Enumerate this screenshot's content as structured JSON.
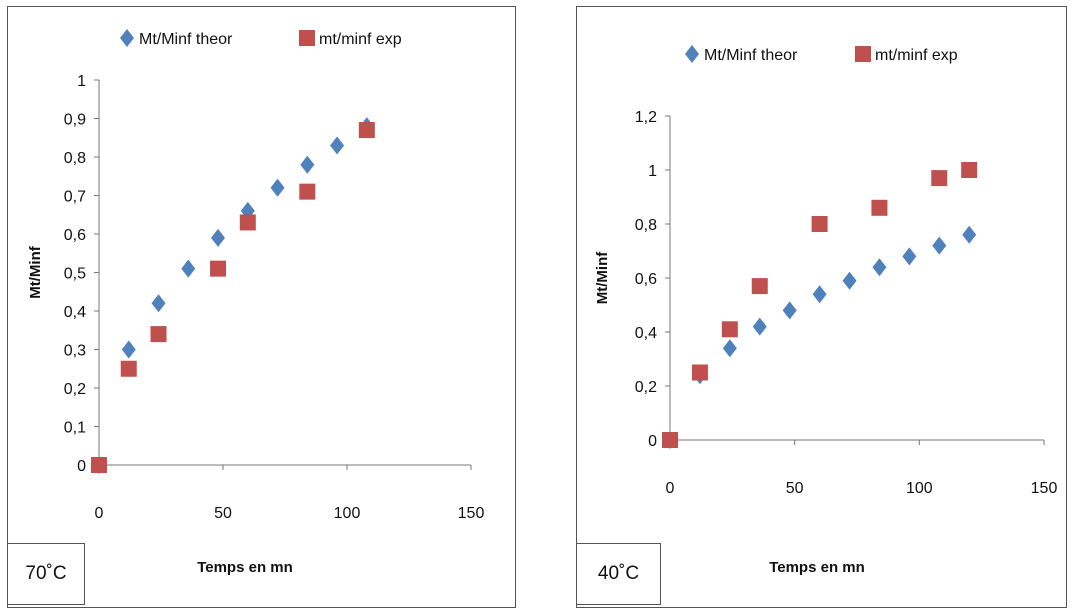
{
  "colors": {
    "theor": "#4F81BD",
    "exp": "#C0504D"
  },
  "chart_data": [
    {
      "type": "scatter",
      "corner_label": "70˚C",
      "xlabel": "Temps en mn",
      "ylabel": "Mt/Minf",
      "xlim": [
        0,
        150
      ],
      "ylim": [
        0,
        1
      ],
      "xticks": [
        "0",
        "50",
        "100",
        "150"
      ],
      "yticks": [
        "0",
        "0,1",
        "0,2",
        "0,3",
        "0,4",
        "0,5",
        "0,6",
        "0,7",
        "0,8",
        "0,9",
        "1"
      ],
      "grid": false,
      "legend": "top",
      "series": [
        {
          "name": "Mt/Minf theor",
          "marker": "diamond",
          "x": [
            0,
            12,
            24,
            36,
            48,
            60,
            72,
            84,
            96,
            108
          ],
          "y": [
            0,
            0.3,
            0.42,
            0.51,
            0.59,
            0.66,
            0.72,
            0.78,
            0.83,
            0.88
          ]
        },
        {
          "name": "mt/minf exp",
          "marker": "square",
          "x": [
            0,
            12,
            24,
            48,
            60,
            84,
            108
          ],
          "y": [
            0,
            0.25,
            0.34,
            0.51,
            0.63,
            0.71,
            0.87
          ]
        }
      ]
    },
    {
      "type": "scatter",
      "corner_label": "40˚C",
      "xlabel": "Temps en mn",
      "ylabel": "Mt/Minf",
      "xlim": [
        0,
        150
      ],
      "ylim": [
        0,
        1.2
      ],
      "xticks": [
        "0",
        "50",
        "100",
        "150"
      ],
      "yticks": [
        "0",
        "0,2",
        "0,4",
        "0,6",
        "0,8",
        "1",
        "1,2"
      ],
      "grid": false,
      "legend": "top",
      "series": [
        {
          "name": "Mt/Minf theor",
          "marker": "diamond",
          "x": [
            0,
            12,
            24,
            36,
            48,
            60,
            72,
            84,
            96,
            108,
            120
          ],
          "y": [
            0,
            0.24,
            0.34,
            0.42,
            0.48,
            0.54,
            0.59,
            0.64,
            0.68,
            0.72,
            0.76
          ]
        },
        {
          "name": "mt/minf exp",
          "marker": "square",
          "x": [
            0,
            12,
            24,
            36,
            60,
            84,
            108,
            120
          ],
          "y": [
            0,
            0.25,
            0.41,
            0.57,
            0.8,
            0.86,
            0.97,
            1.0
          ]
        }
      ]
    }
  ]
}
